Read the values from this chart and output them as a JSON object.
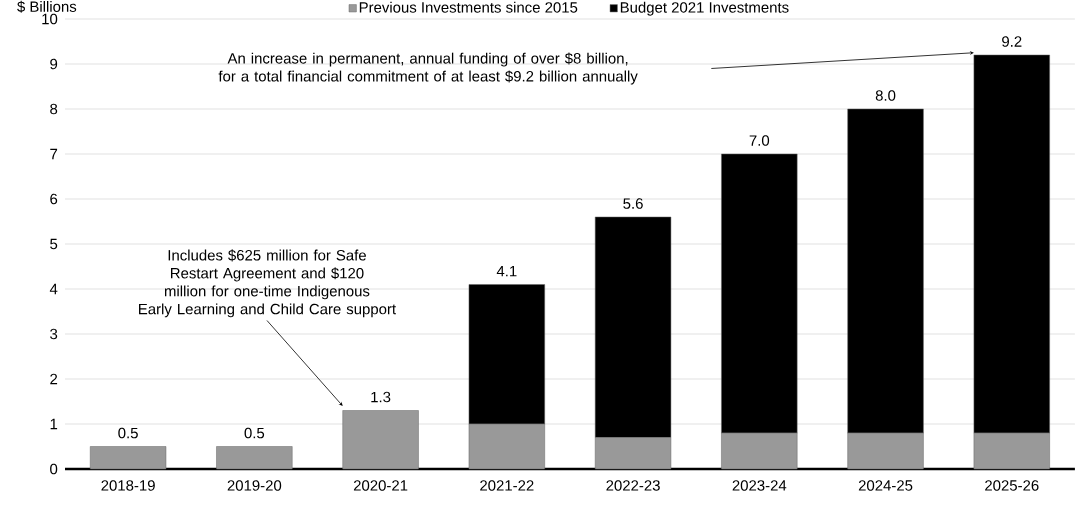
{
  "chart_data": {
    "type": "bar",
    "stacked": true,
    "ylabel": "$ Billions",
    "categories": [
      "2018-19",
      "2019-20",
      "2020-21",
      "2021-22",
      "2022-23",
      "2023-24",
      "2024-25",
      "2025-26"
    ],
    "series": [
      {
        "name": "Previous Investments since 2015",
        "color": "#999999",
        "values": [
          0.5,
          0.5,
          1.3,
          1.0,
          0.7,
          0.8,
          0.8,
          0.8
        ]
      },
      {
        "name": "Budget 2021 Investments",
        "color": "#000000",
        "values": [
          0,
          0,
          0,
          3.1,
          4.9,
          6.2,
          7.2,
          8.4
        ]
      }
    ],
    "totals": [
      "0.5",
      "0.5",
      "1.3",
      "4.1",
      "5.6",
      "7.0",
      "8.0",
      "9.2"
    ],
    "ylim": [
      0,
      10
    ],
    "yticks": [
      0,
      1,
      2,
      3,
      4,
      5,
      6,
      7,
      8,
      9,
      10
    ],
    "grid": "y",
    "legend": "top",
    "annotations": [
      "An increase in permanent, annual funding of over $8 billion, for a total financial  commitment of at least $9.2 billion annually",
      "Includes $625 million for Safe Restart Agreement and $120 million for one-time Indigenous Early Learning and Child Care support"
    ]
  }
}
